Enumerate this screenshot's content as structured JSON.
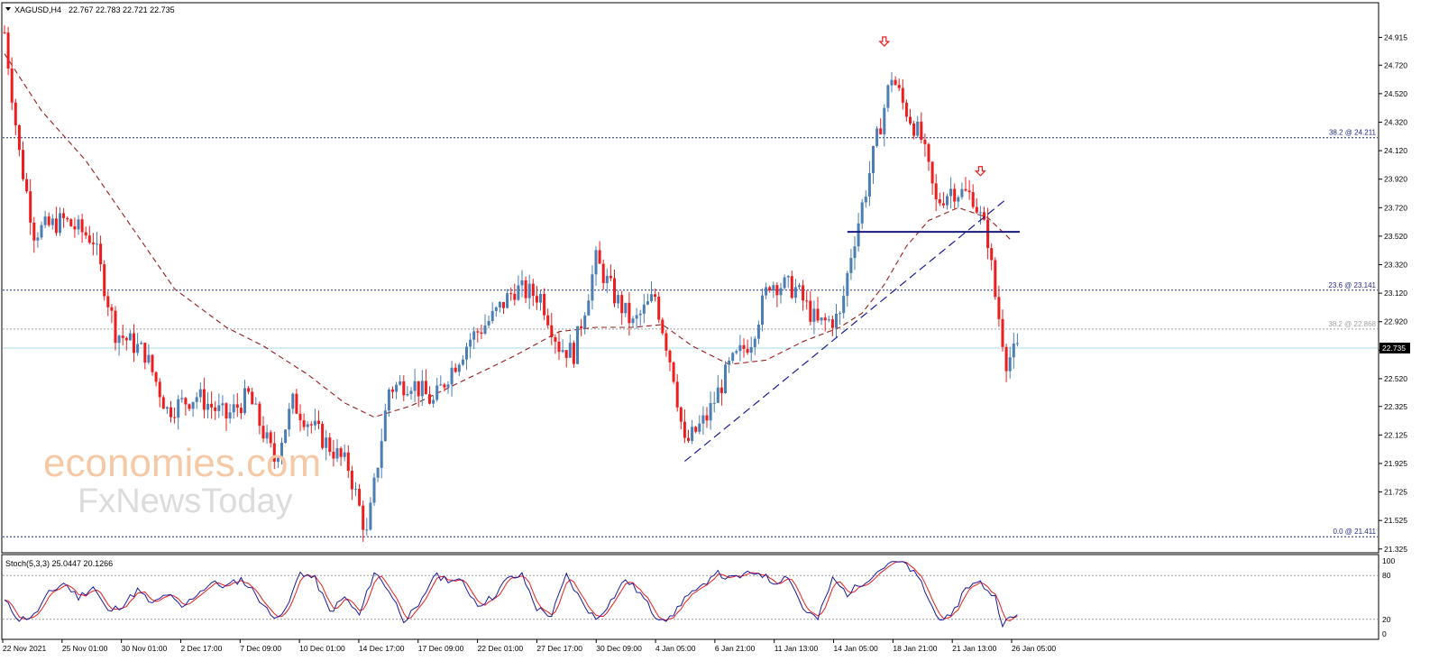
{
  "chart_data": {
    "type": "candlestick",
    "main_header": {
      "symbol": "XAGUSD,H4",
      "ohlc": "22.767 22.783 22.721 22.735"
    },
    "current_price": "22.735",
    "ylim": [
      21.33,
      25.0
    ],
    "y_ticks": [
      "24.915",
      "24.720",
      "24.520",
      "24.320",
      "24.120",
      "23.920",
      "23.720",
      "23.520",
      "23.320",
      "23.120",
      "22.920",
      "22.720",
      "22.520",
      "22.325",
      "22.125",
      "21.925",
      "21.725",
      "21.525",
      "21.325"
    ],
    "x_labels": [
      "22 Nov 2021",
      "25 Nov 01:00",
      "30 Nov 01:00",
      "2 Dec 17:00",
      "7 Dec 09:00",
      "10 Dec 01:00",
      "14 Dec 17:00",
      "17 Dec 09:00",
      "22 Dec 01:00",
      "27 Dec 17:00",
      "30 Dec 09:00",
      "4 Jan 05:00",
      "6 Jan 21:00",
      "11 Jan 13:00",
      "14 Jan 05:00",
      "18 Jan 21:00",
      "21 Jan 13:00",
      "26 Jan 05:00"
    ],
    "fib_levels": [
      {
        "label": "38.2 @ 24.211",
        "value": 24.211,
        "color": "#1f2a8a"
      },
      {
        "label": "23.6 @ 23.141",
        "value": 23.141,
        "color": "#1f2a8a"
      },
      {
        "label": "38.2 @ 22.868",
        "value": 22.868,
        "color": "#a0a0a0"
      },
      {
        "label": "0.0 @ 21.411",
        "value": 21.411,
        "color": "#1f2a8a"
      }
    ],
    "support_line": {
      "value": 23.55
    },
    "trendline": {
      "from": {
        "index": 184,
        "value": 21.94
      },
      "to": {
        "index": 271,
        "value": 23.78
      }
    },
    "arrows": [
      {
        "index": 238,
        "value": 24.88
      },
      {
        "index": 264,
        "value": 23.97
      }
    ],
    "key_points": [
      [
        0,
        24.95
      ],
      [
        4,
        24.1
      ],
      [
        8,
        23.55
      ],
      [
        16,
        23.63
      ],
      [
        24,
        23.5
      ],
      [
        30,
        22.85
      ],
      [
        38,
        22.7
      ],
      [
        44,
        22.3
      ],
      [
        52,
        22.4
      ],
      [
        60,
        22.25
      ],
      [
        66,
        22.4
      ],
      [
        73,
        21.95
      ],
      [
        78,
        22.35
      ],
      [
        86,
        22.1
      ],
      [
        93,
        21.9
      ],
      [
        98,
        21.42
      ],
      [
        104,
        22.45
      ],
      [
        110,
        22.5
      ],
      [
        116,
        22.35
      ],
      [
        120,
        22.55
      ],
      [
        126,
        22.8
      ],
      [
        132,
        22.95
      ],
      [
        138,
        23.15
      ],
      [
        145,
        23.1
      ],
      [
        150,
        22.75
      ],
      [
        154,
        22.7
      ],
      [
        160,
        23.35
      ],
      [
        165,
        23.1
      ],
      [
        170,
        22.9
      ],
      [
        176,
        23.1
      ],
      [
        181,
        22.55
      ],
      [
        184,
        22.05
      ],
      [
        190,
        22.25
      ],
      [
        196,
        22.6
      ],
      [
        202,
        22.8
      ],
      [
        207,
        23.2
      ],
      [
        214,
        23.15
      ],
      [
        220,
        22.9
      ],
      [
        226,
        22.95
      ],
      [
        229,
        23.4
      ],
      [
        233,
        23.85
      ],
      [
        236,
        24.2
      ],
      [
        240,
        24.65
      ],
      [
        243,
        24.45
      ],
      [
        248,
        24.2
      ],
      [
        252,
        23.75
      ],
      [
        256,
        23.85
      ],
      [
        262,
        23.8
      ],
      [
        266,
        23.5
      ],
      [
        268,
        23.1
      ],
      [
        271,
        22.65
      ],
      [
        274,
        22.72
      ]
    ],
    "ma_points": [
      [
        0,
        24.8
      ],
      [
        10,
        24.4
      ],
      [
        22,
        24.05
      ],
      [
        34,
        23.6
      ],
      [
        46,
        23.15
      ],
      [
        60,
        22.88
      ],
      [
        70,
        22.75
      ],
      [
        82,
        22.55
      ],
      [
        92,
        22.35
      ],
      [
        100,
        22.25
      ],
      [
        110,
        22.33
      ],
      [
        122,
        22.48
      ],
      [
        138,
        22.68
      ],
      [
        150,
        22.85
      ],
      [
        160,
        22.88
      ],
      [
        170,
        22.88
      ],
      [
        178,
        22.9
      ],
      [
        186,
        22.75
      ],
      [
        196,
        22.62
      ],
      [
        206,
        22.65
      ],
      [
        216,
        22.78
      ],
      [
        226,
        22.88
      ],
      [
        232,
        22.98
      ],
      [
        238,
        23.18
      ],
      [
        244,
        23.45
      ],
      [
        250,
        23.63
      ],
      [
        258,
        23.72
      ],
      [
        266,
        23.65
      ],
      [
        272,
        23.5
      ]
    ],
    "stochastic": {
      "header": "Stoch(5,3,3) 25.0447 20.1266",
      "main": 25.0447,
      "signal": 20.1266,
      "ylim": [
        0,
        100
      ],
      "y_ticks": [
        "100",
        "80",
        "20",
        "0"
      ],
      "levels": [
        80,
        20
      ],
      "key_points": [
        [
          0,
          45
        ],
        [
          4,
          20
        ],
        [
          8,
          25
        ],
        [
          12,
          55
        ],
        [
          16,
          70
        ],
        [
          20,
          50
        ],
        [
          24,
          65
        ],
        [
          28,
          30
        ],
        [
          32,
          40
        ],
        [
          36,
          60
        ],
        [
          40,
          40
        ],
        [
          44,
          55
        ],
        [
          48,
          35
        ],
        [
          52,
          55
        ],
        [
          56,
          70
        ],
        [
          60,
          65
        ],
        [
          64,
          75
        ],
        [
          68,
          55
        ],
        [
          72,
          25
        ],
        [
          76,
          30
        ],
        [
          80,
          85
        ],
        [
          84,
          75
        ],
        [
          88,
          30
        ],
        [
          92,
          50
        ],
        [
          96,
          25
        ],
        [
          100,
          85
        ],
        [
          104,
          60
        ],
        [
          108,
          20
        ],
        [
          112,
          35
        ],
        [
          116,
          80
        ],
        [
          120,
          75
        ],
        [
          124,
          70
        ],
        [
          128,
          40
        ],
        [
          132,
          50
        ],
        [
          136,
          75
        ],
        [
          140,
          80
        ],
        [
          144,
          35
        ],
        [
          148,
          25
        ],
        [
          152,
          80
        ],
        [
          156,
          45
        ],
        [
          160,
          20
        ],
        [
          164,
          45
        ],
        [
          168,
          75
        ],
        [
          172,
          55
        ],
        [
          176,
          25
        ],
        [
          180,
          20
        ],
        [
          184,
          50
        ],
        [
          188,
          60
        ],
        [
          192,
          85
        ],
        [
          196,
          75
        ],
        [
          200,
          80
        ],
        [
          204,
          85
        ],
        [
          208,
          70
        ],
        [
          212,
          80
        ],
        [
          216,
          35
        ],
        [
          220,
          20
        ],
        [
          224,
          75
        ],
        [
          228,
          55
        ],
        [
          232,
          70
        ],
        [
          236,
          85
        ],
        [
          240,
          100
        ],
        [
          244,
          95
        ],
        [
          248,
          70
        ],
        [
          252,
          25
        ],
        [
          256,
          20
        ],
        [
          260,
          65
        ],
        [
          264,
          70
        ],
        [
          268,
          50
        ],
        [
          270,
          15
        ],
        [
          274,
          25
        ]
      ]
    }
  },
  "watermark": {
    "line1": "economies.com",
    "line2": "FxNewsToday"
  },
  "colors": {
    "bull": "#4a7eb5",
    "bear": "#ee1c1c",
    "ma": "#9b1c1c",
    "grid_fib": "#1f2a8a",
    "current_line": "#a8dbe8",
    "stoch_main": "#1a1a9e",
    "stoch_signal": "#ee1c1c",
    "price_box": "#000000"
  }
}
